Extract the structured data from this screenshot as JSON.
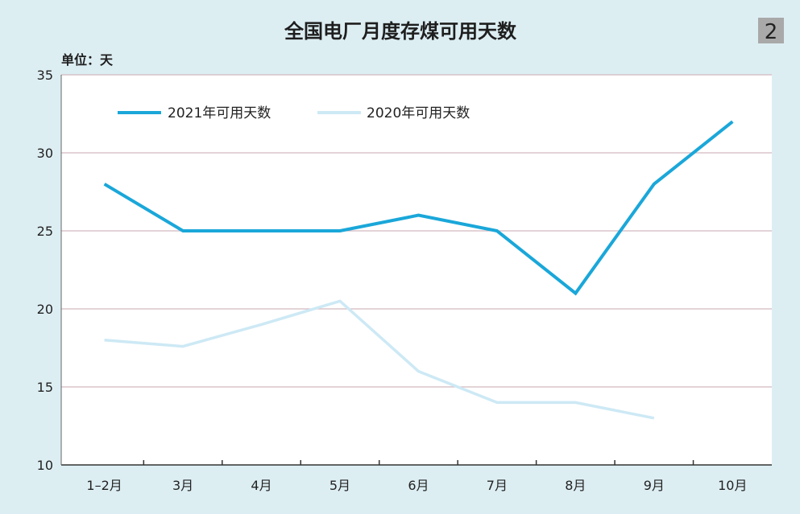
{
  "badge": "2",
  "chart_data": {
    "type": "line",
    "title": "全国电厂月度存煤可用天数",
    "unit_label": "单位：天",
    "categories": [
      "1–2月",
      "3月",
      "4月",
      "5月",
      "6月",
      "7月",
      "8月",
      "9月",
      "10月"
    ],
    "ylim": [
      10,
      35
    ],
    "yticks": [
      10,
      15,
      20,
      25,
      30,
      35
    ],
    "grid": true,
    "legend_position": "top-left",
    "series": [
      {
        "name": "2021年可用天数",
        "color": "#1aa7d9",
        "values": [
          28,
          25,
          25,
          25,
          26,
          25,
          21,
          28,
          32
        ]
      },
      {
        "name": "2020年可用天数",
        "color": "#cde9f5",
        "values": [
          18,
          17.6,
          19,
          20.5,
          16,
          14,
          14,
          13,
          null
        ]
      }
    ]
  }
}
